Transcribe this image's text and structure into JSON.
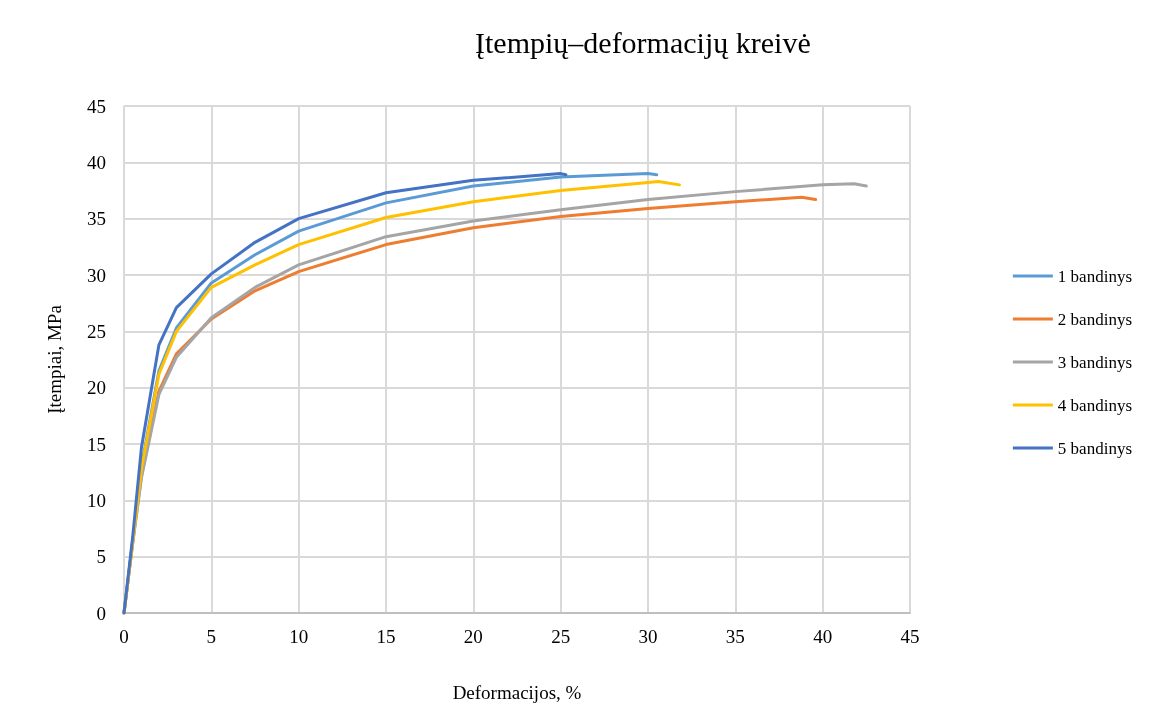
{
  "chart_data": {
    "type": "line",
    "title": "Įtempių–deformacijų kreivė",
    "xlabel": "Deformacijos, %",
    "ylabel": "Įtempiai, MPa",
    "xlim": [
      0,
      45
    ],
    "xticks": [
      0,
      5,
      10,
      15,
      20,
      25,
      30,
      35,
      40,
      45
    ],
    "ylim": [
      0,
      45
    ],
    "yticks": [
      0,
      5,
      10,
      15,
      20,
      25,
      30,
      35,
      40,
      45
    ],
    "grid": true,
    "legend": "right",
    "marker": "none",
    "line_style": "solid",
    "series": [
      {
        "name": "1 bandinys",
        "color": "#5b9bd5",
        "x": [
          0,
          0.5,
          1,
          2,
          3,
          5,
          7.5,
          10,
          15,
          20,
          25,
          30,
          30.5
        ],
        "values": [
          0,
          6.4,
          13,
          21.5,
          25.3,
          29.3,
          31.8,
          33.9,
          36.4,
          37.9,
          38.7,
          39.0,
          38.9
        ]
      },
      {
        "name": "2 bandinys",
        "color": "#ed7d31",
        "x": [
          0,
          0.5,
          1,
          2,
          3,
          5,
          7.5,
          10,
          15,
          20,
          25,
          30,
          35,
          38.8,
          39.6
        ],
        "values": [
          0,
          6.3,
          12.2,
          19.7,
          23,
          26.1,
          28.6,
          30.3,
          32.7,
          34.2,
          35.2,
          35.9,
          36.5,
          36.9,
          36.7
        ]
      },
      {
        "name": "3 bandinys",
        "color": "#a5a5a5",
        "x": [
          0,
          0.5,
          1,
          2,
          3,
          5,
          7.5,
          10,
          15,
          20,
          25,
          30,
          35,
          40,
          41.8,
          42.5
        ],
        "values": [
          0,
          6.2,
          12,
          19.4,
          22.7,
          26.2,
          28.9,
          30.9,
          33.4,
          34.8,
          35.8,
          36.7,
          37.4,
          38.0,
          38.1,
          37.9
        ]
      },
      {
        "name": "4 bandinys",
        "color": "#ffc000",
        "x": [
          0,
          0.5,
          1,
          2,
          3,
          5,
          7.5,
          10,
          15,
          20,
          25,
          30,
          30.6,
          31.8
        ],
        "values": [
          0,
          6.3,
          12.8,
          21.2,
          25,
          28.9,
          30.9,
          32.7,
          35.1,
          36.5,
          37.5,
          38.2,
          38.3,
          38.0
        ]
      },
      {
        "name": "5 bandinys",
        "color": "#4472c4",
        "x": [
          0,
          0.5,
          1,
          2,
          3,
          5,
          7.5,
          10,
          15,
          20,
          25,
          25.3
        ],
        "values": [
          0,
          6.8,
          14.7,
          23.8,
          27.1,
          30.1,
          32.9,
          35,
          37.3,
          38.4,
          39.0,
          38.9
        ]
      }
    ]
  }
}
